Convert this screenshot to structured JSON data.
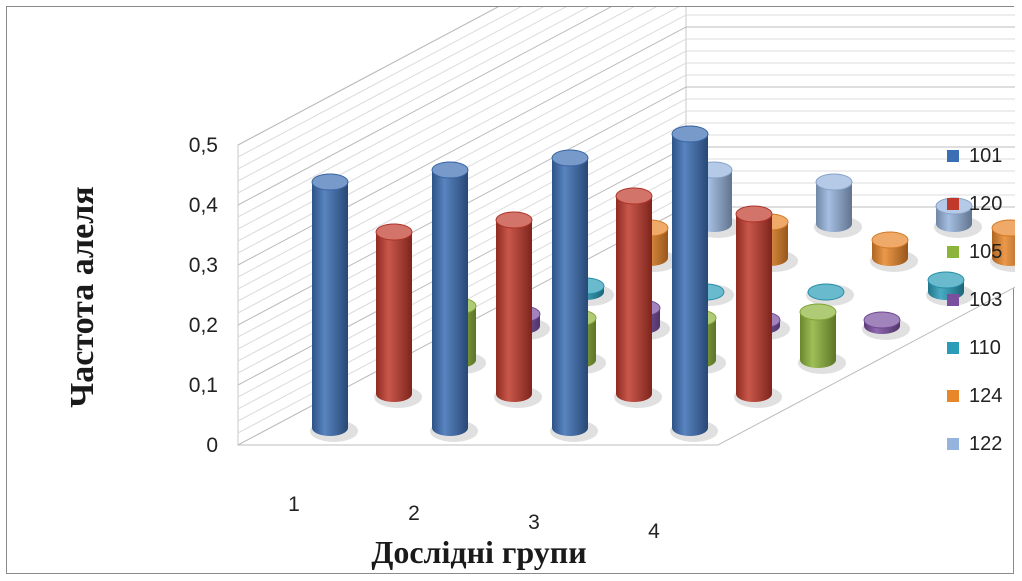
{
  "chart_data": {
    "type": "bar",
    "subtype": "3d-cylinder",
    "categories": [
      "1",
      "2",
      "3",
      "4"
    ],
    "series": [
      {
        "name": "101",
        "color": "#3c6eb4",
        "values": [
          0.41,
          0.43,
          0.45,
          0.49
        ]
      },
      {
        "name": "120",
        "color": "#c0392b",
        "values": [
          0.27,
          0.29,
          0.33,
          0.3
        ]
      },
      {
        "name": "105",
        "color": "#8db43a",
        "values": [
          0.09,
          0.07,
          0.07,
          0.08
        ]
      },
      {
        "name": "103",
        "color": "#7a4fa0",
        "values": [
          0.02,
          0.03,
          0.01,
          0.01
        ]
      },
      {
        "name": "110",
        "color": "#2a9cb8",
        "values": [
          0.01,
          0.0,
          0.0,
          0.02
        ]
      },
      {
        "name": "124",
        "color": "#e8862a",
        "values": [
          0.05,
          0.06,
          0.03,
          0.05
        ]
      },
      {
        "name": "122",
        "color": "#95b3dc",
        "values": [
          0.09,
          0.07,
          0.03,
          0.05
        ]
      }
    ],
    "ylabel": "Частота алеля",
    "xlabel": "Дослідні групи",
    "yticks": [
      "0",
      "0,1",
      "0,2",
      "0,3",
      "0,4",
      "0,5"
    ],
    "ylim": [
      0,
      0.5
    ],
    "grid": true,
    "legend": "right"
  }
}
